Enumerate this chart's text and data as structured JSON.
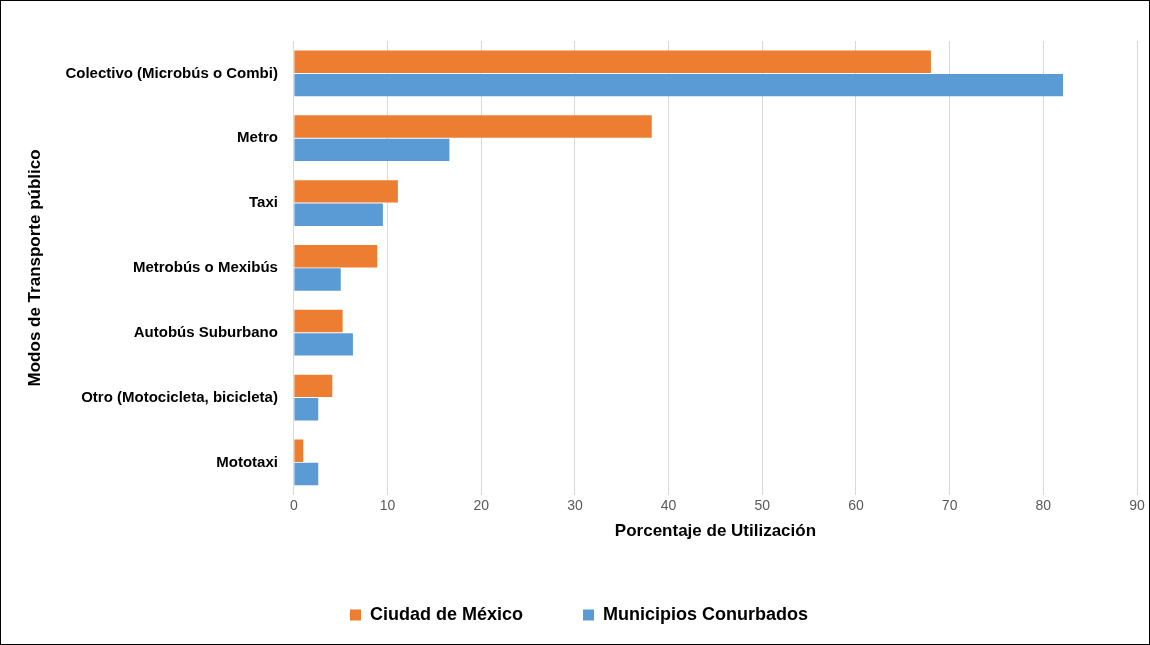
{
  "chart_data": {
    "type": "bar",
    "orientation": "horizontal",
    "xlabel": "Porcentaje de Utilización",
    "ylabel": "Modos de Transporte público",
    "categories": [
      "Colectivo (Microbús o Combi)",
      "Metro",
      "Taxi",
      "Metrobús o Mexibús",
      "Autobús Suburbano",
      "Otro (Motocicleta, bicicleta)",
      "Mototaxi"
    ],
    "series": [
      {
        "name": "Ciudad de México",
        "color": "#ed7d31",
        "values": [
          68,
          38.2,
          11.1,
          8.9,
          5.2,
          4.1,
          1.0
        ]
      },
      {
        "name": "Municipios Conurbados",
        "color": "#5b9bd5",
        "values": [
          82.1,
          16.6,
          9.5,
          5.0,
          6.3,
          2.6,
          2.6
        ]
      }
    ],
    "xlim": [
      0,
      90
    ],
    "xticks": [
      0,
      10,
      20,
      30,
      40,
      50,
      60,
      70,
      80,
      90
    ],
    "grid": "x",
    "legend": "bottom"
  }
}
